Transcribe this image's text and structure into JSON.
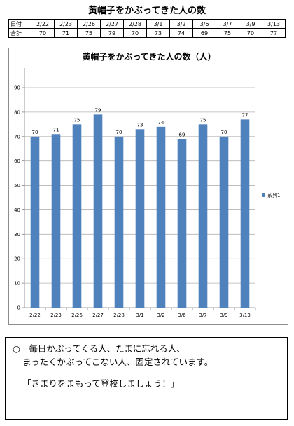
{
  "page": {
    "title": "黄帽子をかぶってきた人の数"
  },
  "table": {
    "header_label": "日付",
    "value_label": "合計"
  },
  "chart_data": {
    "type": "bar",
    "title": "黄帽子をかぶってきた人の数（人）",
    "categories": [
      "2/22",
      "2/23",
      "2/26",
      "2/27",
      "2/28",
      "3/1",
      "3/2",
      "3/6",
      "3/7",
      "3/9",
      "3/13"
    ],
    "series": [
      {
        "name": "系列1",
        "values": [
          70,
          71,
          75,
          79,
          70,
          73,
          74,
          69,
          75,
          70,
          77
        ]
      }
    ],
    "ylim": [
      0,
      90
    ],
    "yticks": [
      0,
      10,
      20,
      30,
      40,
      50,
      60,
      70,
      80,
      90
    ],
    "grid": true,
    "legend": "right",
    "bar_color": "#4f81bd",
    "data_labels": true
  },
  "note": {
    "line1": "○　毎日かぶってくる人、たまに忘れる人、",
    "line2": "まったくかぶってこない人、固定されています。",
    "line3": "「きまりをまもって登校しましょう！」"
  }
}
